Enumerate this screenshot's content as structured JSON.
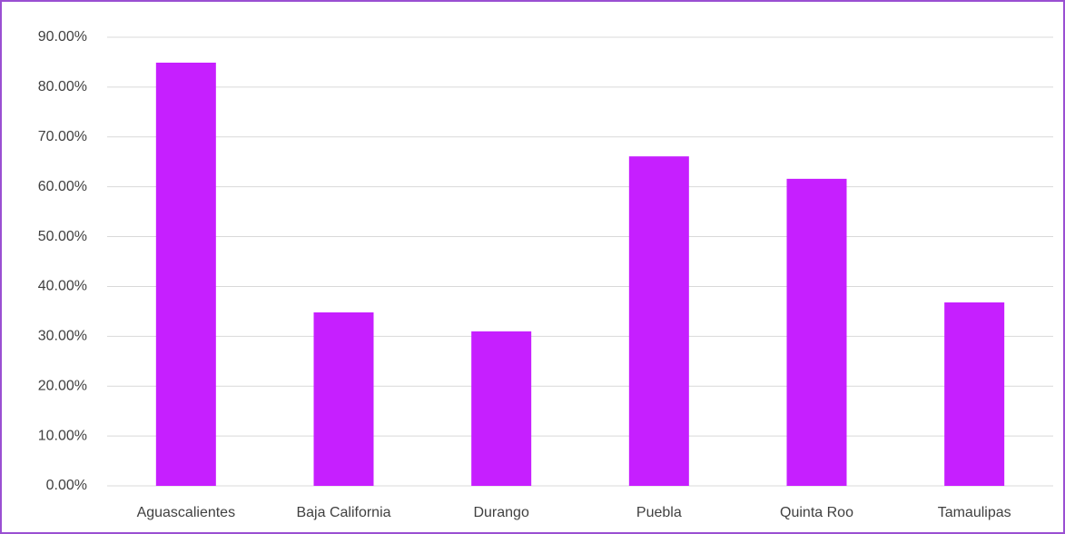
{
  "chart_data": {
    "type": "bar",
    "categories": [
      "Aguascalientes",
      "Baja California",
      "Durango",
      "Puebla",
      "Quinta Roo",
      "Tamaulipas"
    ],
    "values": [
      84.9,
      34.8,
      31.0,
      66.1,
      61.6,
      36.8
    ],
    "color": "#c61fff",
    "ylim": [
      0,
      90
    ],
    "yticks": [
      {
        "value": 0,
        "label": "0.00%"
      },
      {
        "value": 10,
        "label": "10.00%"
      },
      {
        "value": 20,
        "label": "20.00%"
      },
      {
        "value": 30,
        "label": "30.00%"
      },
      {
        "value": 40,
        "label": "40.00%"
      },
      {
        "value": 50,
        "label": "50.00%"
      },
      {
        "value": 60,
        "label": "60.00%"
      },
      {
        "value": 70,
        "label": "70.00%"
      },
      {
        "value": 80,
        "label": "80.00%"
      },
      {
        "value": 90,
        "label": "90.00%"
      }
    ],
    "grid": true
  }
}
